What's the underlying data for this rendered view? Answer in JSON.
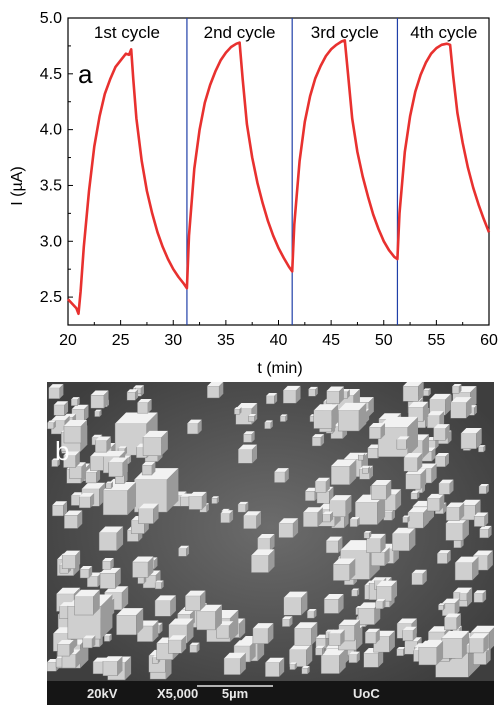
{
  "chart_data": {
    "type": "line",
    "xlabel": "t (min)",
    "ylabel": "I (µA)",
    "xlim": [
      20,
      60
    ],
    "ylim": [
      2.25,
      5.0
    ],
    "xticks": [
      20,
      25,
      30,
      35,
      40,
      45,
      50,
      55,
      60
    ],
    "yticks": [
      2.5,
      3.0,
      3.5,
      4.0,
      4.5,
      5.0
    ],
    "xtick_labels": [
      "20",
      "25",
      "30",
      "35",
      "40",
      "45",
      "50",
      "55",
      "60"
    ],
    "ytick_labels": [
      "2.5",
      "3.0",
      "3.5",
      "4.0",
      "4.5",
      "5.0"
    ],
    "panel_label": "a",
    "line_color": "#e8312f",
    "divider_color": "#1f3fa8",
    "cycle_dividers": [
      31.3,
      41.3,
      51.3
    ],
    "cycle_labels": [
      {
        "text": "1st cycle",
        "x": 25.6
      },
      {
        "text": "2nd cycle",
        "x": 36.3
      },
      {
        "text": "3rd cycle",
        "x": 46.3
      },
      {
        "text": "4th cycle",
        "x": 55.7
      }
    ],
    "grid": false,
    "series": [
      {
        "x": [
          20.0,
          20.4,
          20.8,
          21.0,
          21.2,
          21.5,
          22.0,
          22.5,
          23.0,
          23.5,
          24.0,
          24.5,
          25.0,
          25.5,
          25.8,
          26.0,
          26.2,
          26.5,
          27.0,
          27.5,
          28.0,
          28.5,
          29.0,
          29.5,
          30.0,
          30.5,
          31.0,
          31.3,
          31.5,
          32.0,
          32.5,
          33.0,
          33.5,
          34.0,
          34.5,
          35.0,
          35.5,
          36.0,
          36.3,
          36.6,
          37.0,
          37.5,
          38.0,
          38.5,
          39.0,
          39.5,
          40.0,
          40.5,
          41.0,
          41.3,
          41.5,
          42.0,
          42.5,
          43.0,
          43.5,
          44.0,
          44.5,
          45.0,
          45.5,
          46.0,
          46.3,
          46.6,
          47.0,
          47.5,
          48.0,
          48.5,
          49.0,
          49.5,
          50.0,
          50.5,
          51.0,
          51.3,
          51.5,
          52.0,
          52.5,
          53.0,
          53.5,
          54.0,
          54.5,
          55.0,
          55.5,
          56.0,
          56.3,
          56.6,
          57.0,
          57.5,
          58.0,
          58.5,
          59.0,
          59.5,
          60.0
        ],
        "y": [
          2.48,
          2.44,
          2.4,
          2.35,
          2.55,
          2.95,
          3.45,
          3.85,
          4.12,
          4.32,
          4.45,
          4.56,
          4.62,
          4.68,
          4.67,
          4.72,
          4.45,
          4.1,
          3.72,
          3.45,
          3.25,
          3.08,
          2.95,
          2.84,
          2.75,
          2.68,
          2.62,
          2.58,
          3.05,
          3.65,
          4.0,
          4.24,
          4.4,
          4.52,
          4.62,
          4.69,
          4.74,
          4.77,
          4.78,
          4.45,
          4.05,
          3.75,
          3.52,
          3.34,
          3.18,
          3.05,
          2.94,
          2.85,
          2.77,
          2.73,
          3.15,
          3.72,
          4.07,
          4.3,
          4.46,
          4.57,
          4.66,
          4.72,
          4.76,
          4.79,
          4.8,
          4.5,
          4.1,
          3.8,
          3.58,
          3.4,
          3.24,
          3.11,
          3.0,
          2.92,
          2.86,
          2.84,
          3.25,
          3.8,
          4.12,
          4.34,
          4.49,
          4.6,
          4.68,
          4.73,
          4.76,
          4.77,
          4.76,
          4.48,
          4.15,
          3.88,
          3.66,
          3.48,
          3.33,
          3.2,
          3.08
        ]
      }
    ]
  },
  "sem": {
    "panel_label": "b",
    "voltage": "20kV",
    "magnification": "X5,000",
    "scale": "5µm",
    "institution": "UoC"
  }
}
